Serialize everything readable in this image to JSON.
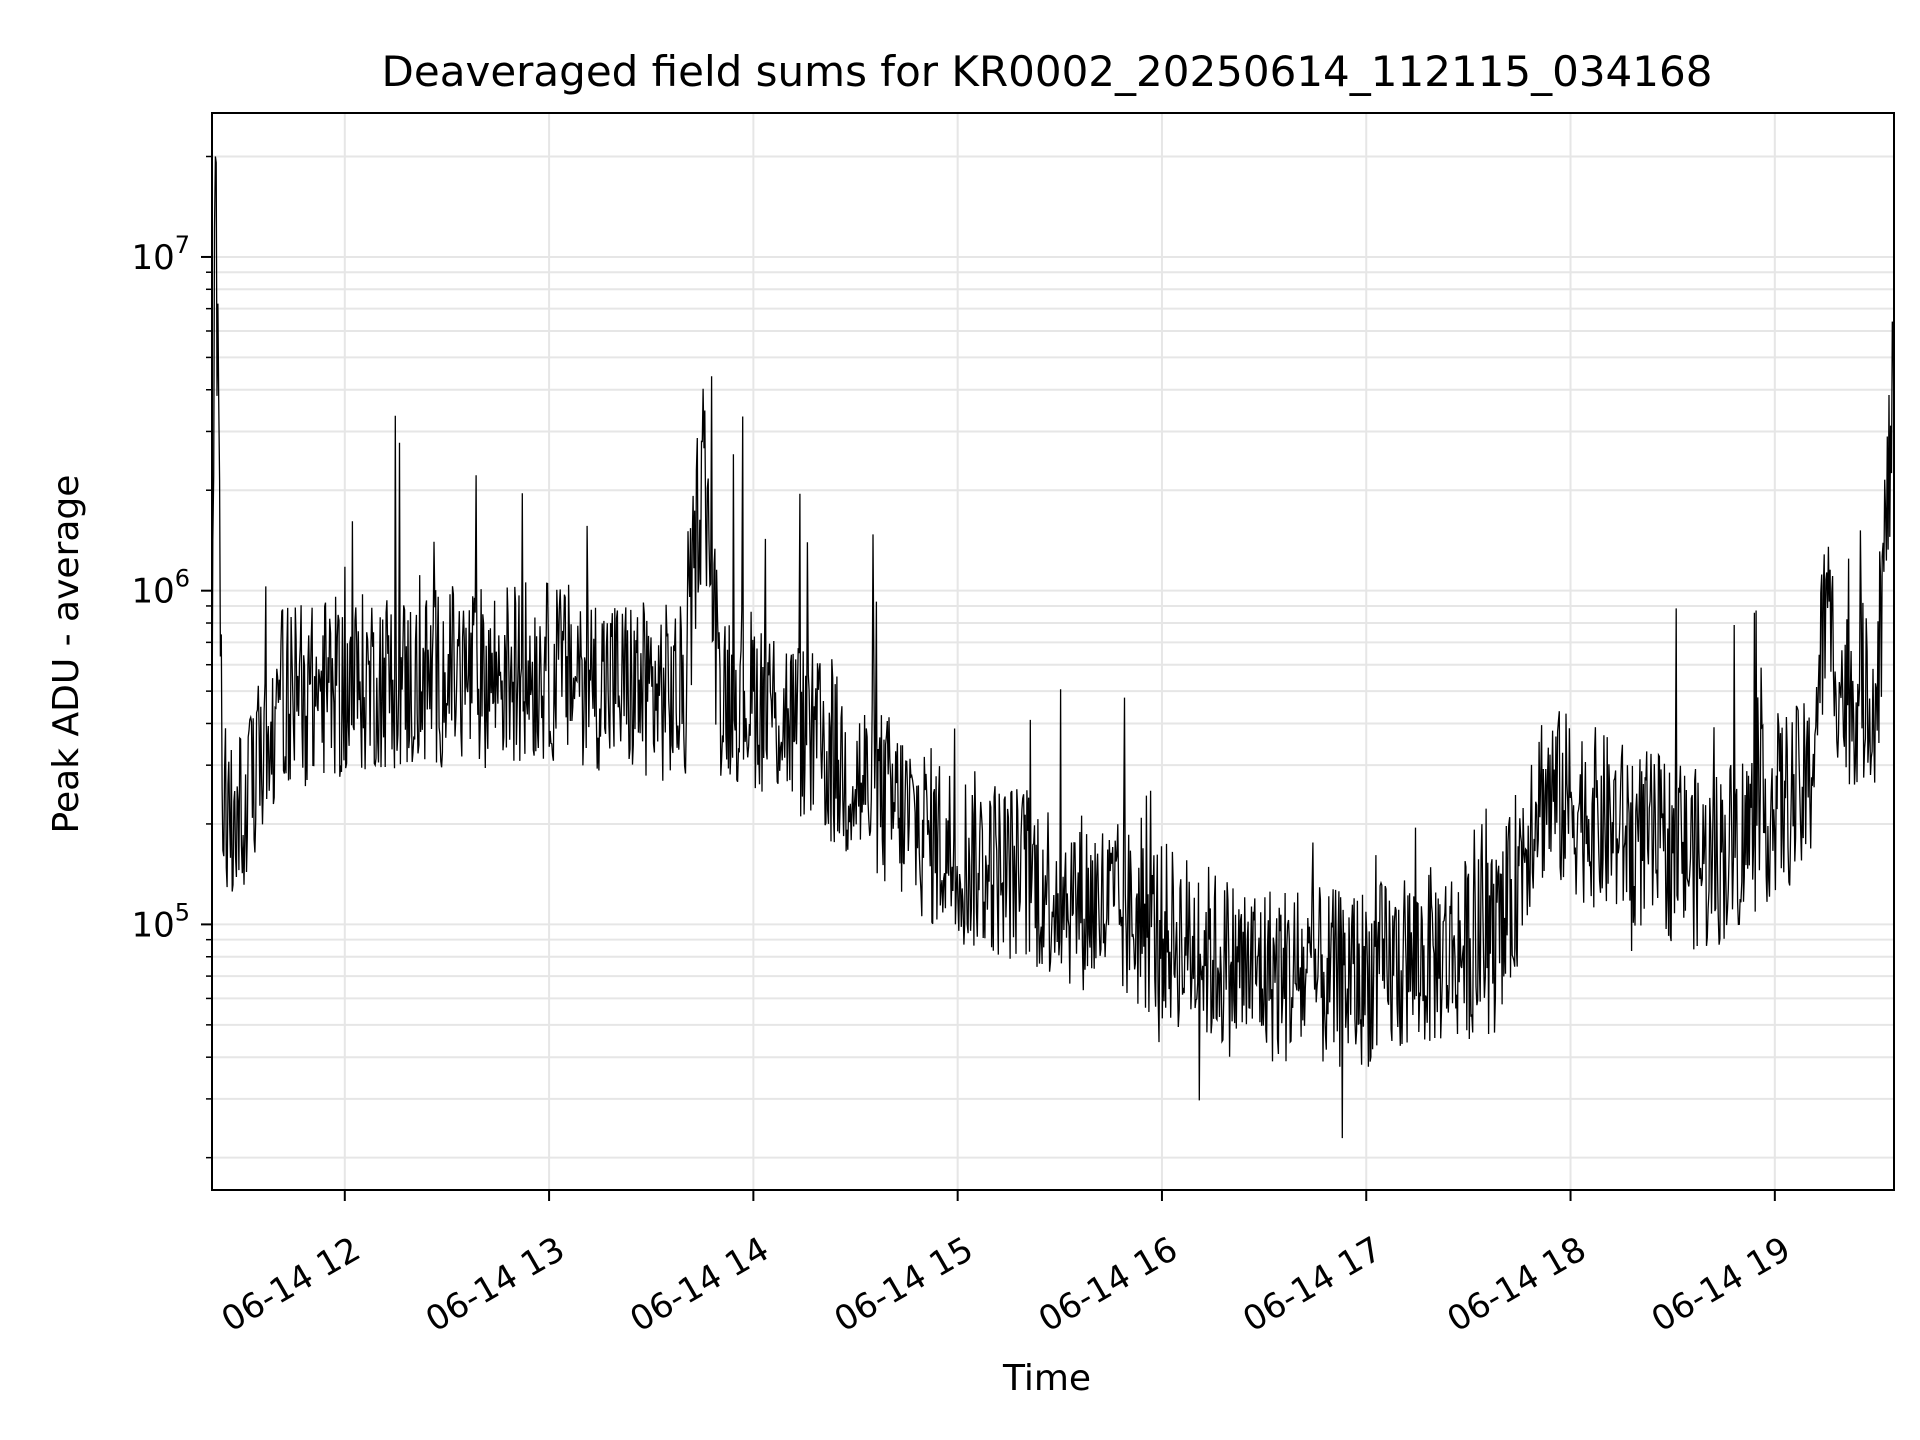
{
  "chart_data": {
    "type": "line",
    "title": "Deaveraged field sums for KR0002_20250614_112115_034168",
    "xlabel": "Time",
    "ylabel": "Peak ADU - average",
    "x_scale": "time",
    "y_scale": "log",
    "xlim": [
      "2025-06-14 11:21",
      "2025-06-14 19:35"
    ],
    "ylim": [
      16000,
      27000000
    ],
    "grid": true,
    "line_color": "#000000",
    "grid_color": "#e6e6e6",
    "x_ticks": [
      "06-14 12",
      "06-14 13",
      "06-14 14",
      "06-14 15",
      "06-14 16",
      "06-14 17",
      "06-14 18",
      "06-14 19"
    ],
    "y_ticks": [
      {
        "base": "10",
        "exp": "5",
        "value": 100000
      },
      {
        "base": "10",
        "exp": "6",
        "value": 1000000
      },
      {
        "base": "10",
        "exp": "7",
        "value": 10000000
      }
    ],
    "series": [
      {
        "x": [
          "11:21",
          "11:22",
          "11:24",
          "11:27",
          "11:30",
          "11:35",
          "11:40",
          "11:45",
          "11:50",
          "11:55",
          "12:00",
          "12:10",
          "12:20",
          "12:30",
          "12:40",
          "12:50",
          "13:00",
          "13:10",
          "13:20",
          "13:30",
          "13:40",
          "13:45",
          "13:50",
          "13:55",
          "14:00",
          "14:10",
          "14:20",
          "14:30",
          "14:40",
          "14:50",
          "15:00",
          "15:10",
          "15:20",
          "15:30",
          "15:40",
          "15:50",
          "16:00",
          "16:10",
          "16:20",
          "16:30",
          "16:40",
          "16:50",
          "17:00",
          "17:10",
          "17:20",
          "17:30",
          "17:40",
          "17:50",
          "18:00",
          "18:10",
          "18:20",
          "18:30",
          "18:40",
          "18:50",
          "19:00",
          "19:10",
          "19:15",
          "19:20",
          "19:30",
          "19:35"
        ],
        "y": [
          500000,
          20000000,
          250000,
          180000,
          200000,
          300000,
          450000,
          500000,
          480000,
          520000,
          500000,
          550000,
          520000,
          560000,
          550000,
          580000,
          570000,
          560000,
          520000,
          500000,
          480000,
          2800000,
          520000,
          500000,
          480000,
          420000,
          330000,
          270000,
          230000,
          190000,
          160000,
          150000,
          140000,
          125000,
          115000,
          105000,
          95000,
          85000,
          75000,
          72000,
          70000,
          68000,
          70000,
          75000,
          80000,
          85000,
          90000,
          250000,
          230000,
          200000,
          180000,
          170000,
          150000,
          180000,
          230000,
          250000,
          900000,
          480000,
          500000,
          4200000
        ]
      }
    ]
  }
}
